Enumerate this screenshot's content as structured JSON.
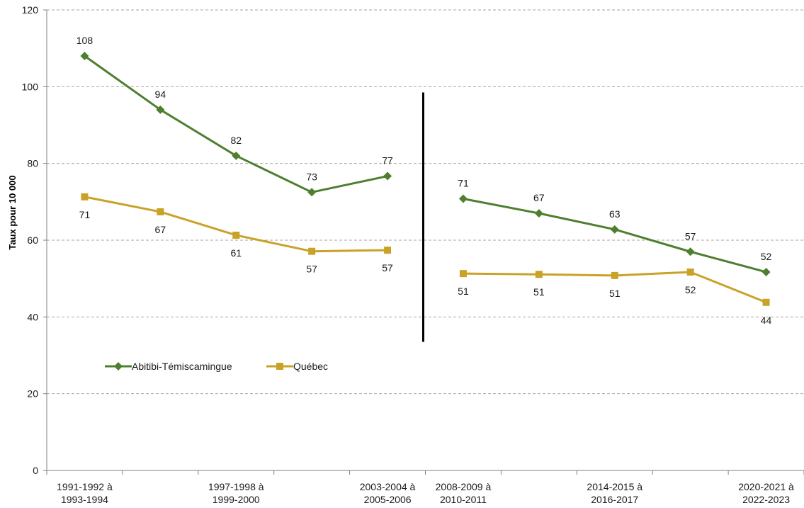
{
  "chart_data": {
    "type": "line",
    "ylabel": "Taux pour 10 000",
    "ylim": [
      0,
      120
    ],
    "yticks": [
      0,
      20,
      40,
      60,
      80,
      100,
      120
    ],
    "grid": true,
    "legend_position": "middle-left",
    "categories": [
      "1991-1992 à 1993-1994",
      "",
      "1997-1998 à 1999-2000",
      "",
      "2003-2004 à 2005-2006",
      "2008-2009 à 2010-2011",
      "",
      "2014-2015 à 2016-2017",
      "",
      "2020-2021 à 2022-2023"
    ],
    "category_labels": [
      [
        "1991-1992 à",
        "1993-1994"
      ],
      null,
      [
        "1997-1998 à",
        "1999-2000"
      ],
      null,
      [
        "2003-2004 à",
        "2005-2006"
      ],
      [
        "2008-2009 à",
        "2010-2011"
      ],
      null,
      [
        "2014-2015 à",
        "2016-2017"
      ],
      null,
      [
        "2020-2021 à",
        "2022-2023"
      ]
    ],
    "series": [
      {
        "name": "Abitibi-Témiscamingue",
        "color": "#4e7f2f",
        "marker": "diamond",
        "label_position": "above",
        "segments": [
          {
            "values": [
              108,
              94,
              82,
              72.5,
              76.7
            ],
            "labels": [
              "108",
              "94",
              "82",
              "73",
              "77"
            ],
            "start": 0
          },
          {
            "values": [
              70.8,
              67,
              62.8,
              57,
              51.7
            ],
            "labels": [
              "71",
              "67",
              "63",
              "57",
              "52"
            ],
            "start": 5
          }
        ]
      },
      {
        "name": "Québec",
        "color": "#c9a227",
        "marker": "square",
        "label_position": "below",
        "segments": [
          {
            "values": [
              71.3,
              67.4,
              61.3,
              57.1,
              57.4
            ],
            "labels": [
              "71",
              "67",
              "61",
              "57",
              "57"
            ],
            "start": 0
          },
          {
            "values": [
              51.3,
              51.1,
              50.8,
              51.7,
              43.8
            ],
            "labels": [
              "51",
              "51",
              "51",
              "52",
              "44"
            ],
            "start": 5
          }
        ]
      }
    ],
    "period_break_after_index": 4
  }
}
